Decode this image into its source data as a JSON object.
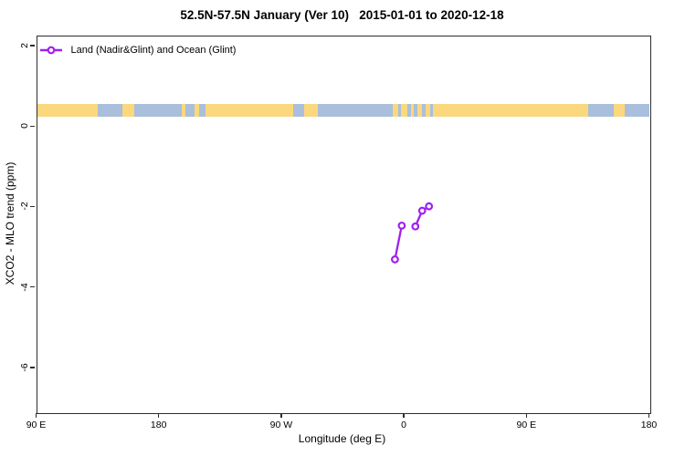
{
  "title": "52.5N-57.5N January (Ver 10)   2015-01-01 to 2020-12-18",
  "legend": {
    "label": "Land (Nadir&Glint) and Ocean (Glint)"
  },
  "chart_data": {
    "type": "line",
    "title": "52.5N-57.5N January (Ver 10)   2015-01-01 to 2020-12-18",
    "xlabel": "Longitude (deg E)",
    "ylabel": "XCO2 - MLO trend (ppm)",
    "xlim": [
      90,
      540
    ],
    "ylim": [
      -7.1,
      2.26
    ],
    "grid": false,
    "legend_position": "top-left-inside",
    "x_ticks": [
      {
        "axis_deg": 90,
        "label": "90 E"
      },
      {
        "axis_deg": 180,
        "label": "180"
      },
      {
        "axis_deg": 270,
        "label": "90 W"
      },
      {
        "axis_deg": 360,
        "label": "0"
      },
      {
        "axis_deg": 450,
        "label": "90 E"
      },
      {
        "axis_deg": 540,
        "label": "180"
      }
    ],
    "y_ticks": [
      {
        "value": 2,
        "label": "2"
      },
      {
        "value": 0,
        "label": "0"
      },
      {
        "value": -2,
        "label": "-2"
      },
      {
        "value": -4,
        "label": "-4"
      },
      {
        "value": -6,
        "label": "-6"
      }
    ],
    "series": [
      {
        "name": "Land (Nadir&Glint) and Ocean (Glint)",
        "color": "#A020F0",
        "marker": "open-circle",
        "segments": [
          [
            {
              "lon": -7.5,
              "axis_deg": 352.5,
              "ppm": -3.28
            },
            {
              "lon": -2.5,
              "axis_deg": 357.5,
              "ppm": -2.44
            }
          ],
          [
            {
              "lon": 7.5,
              "axis_deg": 367.5,
              "ppm": -2.46
            },
            {
              "lon": 12.5,
              "axis_deg": 372.5,
              "ppm": -2.07
            },
            {
              "lon": 17.5,
              "axis_deg": 377.5,
              "ppm": -1.96
            }
          ]
        ]
      }
    ],
    "map_band": {
      "description": "land/ocean strip for latitude band 52.5N-57.5N",
      "top_ppm": 0.565,
      "bottom_ppm": 0.26,
      "land_color": "#FBD77E",
      "ocean_color": "#A9BFDC",
      "segments": [
        {
          "from": 90,
          "to": 134.5,
          "kind": "land"
        },
        {
          "from": 134.5,
          "to": 152.5,
          "kind": "ocean"
        },
        {
          "from": 152.5,
          "to": 161.5,
          "kind": "land"
        },
        {
          "from": 161.5,
          "to": 196,
          "kind": "ocean"
        },
        {
          "from": 196,
          "to": 199,
          "kind": "land"
        },
        {
          "from": 199,
          "to": 206,
          "kind": "ocean"
        },
        {
          "from": 206,
          "to": 209,
          "kind": "land"
        },
        {
          "from": 209,
          "to": 214,
          "kind": "ocean"
        },
        {
          "from": 214,
          "to": 278,
          "kind": "land"
        },
        {
          "from": 278,
          "to": 286,
          "kind": "ocean"
        },
        {
          "from": 286,
          "to": 296,
          "kind": "land"
        },
        {
          "from": 296,
          "to": 351.5,
          "kind": "ocean"
        },
        {
          "from": 351.5,
          "to": 355.5,
          "kind": "land"
        },
        {
          "from": 355.5,
          "to": 357.5,
          "kind": "ocean"
        },
        {
          "from": 357.5,
          "to": 362,
          "kind": "land"
        },
        {
          "from": 362,
          "to": 364.5,
          "kind": "ocean"
        },
        {
          "from": 364.5,
          "to": 366.5,
          "kind": "land"
        },
        {
          "from": 366.5,
          "to": 369,
          "kind": "ocean"
        },
        {
          "from": 369,
          "to": 372.5,
          "kind": "land"
        },
        {
          "from": 372.5,
          "to": 375.5,
          "kind": "ocean"
        },
        {
          "from": 375.5,
          "to": 378.5,
          "kind": "land"
        },
        {
          "from": 378.5,
          "to": 380.5,
          "kind": "ocean"
        },
        {
          "from": 380.5,
          "to": 494.5,
          "kind": "land"
        },
        {
          "from": 494.5,
          "to": 513.5,
          "kind": "ocean"
        },
        {
          "from": 513.5,
          "to": 521.5,
          "kind": "land"
        },
        {
          "from": 521.5,
          "to": 540,
          "kind": "ocean"
        }
      ]
    }
  }
}
